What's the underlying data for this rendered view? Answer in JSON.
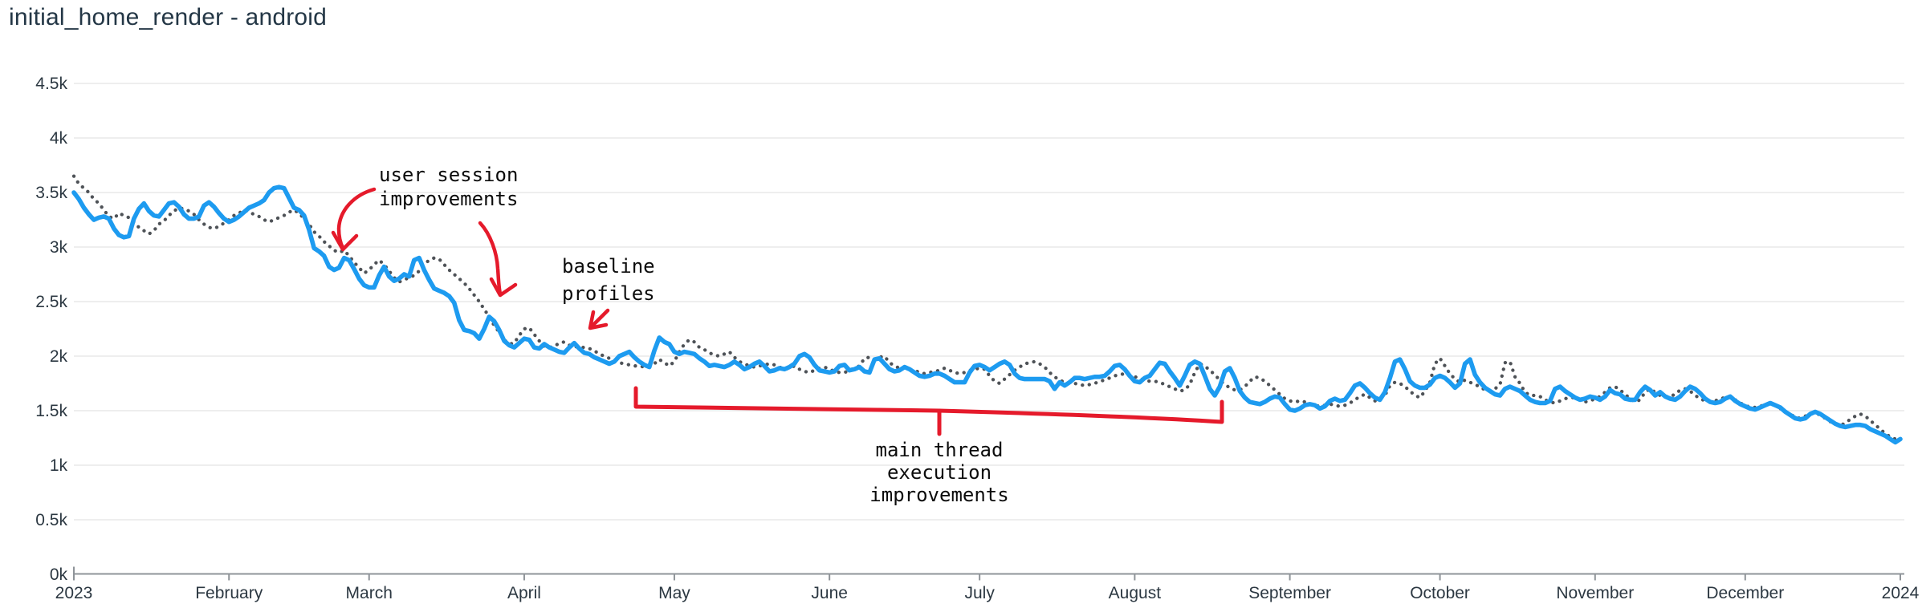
{
  "chart_data": {
    "type": "line",
    "title": "initial_home_render - android",
    "legend": "none",
    "grid": "horizontal-only",
    "x_axis": {
      "start_label": "2023",
      "end_label": "2024",
      "ticks": [
        {
          "label": "2023",
          "day": 0
        },
        {
          "label": "February",
          "day": 31
        },
        {
          "label": "March",
          "day": 59
        },
        {
          "label": "April",
          "day": 90
        },
        {
          "label": "May",
          "day": 120
        },
        {
          "label": "June",
          "day": 151
        },
        {
          "label": "July",
          "day": 181
        },
        {
          "label": "August",
          "day": 212
        },
        {
          "label": "September",
          "day": 243
        },
        {
          "label": "October",
          "day": 273
        },
        {
          "label": "November",
          "day": 304
        },
        {
          "label": "December",
          "day": 334
        },
        {
          "label": "2024",
          "day": 365
        }
      ]
    },
    "y_axis": {
      "unit": "k",
      "range": [
        0,
        4.5
      ],
      "ticks": [
        {
          "label": "0k",
          "value": 0
        },
        {
          "label": "0.5k",
          "value": 0.5
        },
        {
          "label": "1k",
          "value": 1
        },
        {
          "label": "1.5k",
          "value": 1.5
        },
        {
          "label": "2k",
          "value": 2
        },
        {
          "label": "2.5k",
          "value": 2.5
        },
        {
          "label": "3k",
          "value": 3
        },
        {
          "label": "3.5k",
          "value": 3.5
        },
        {
          "label": "4k",
          "value": 4
        },
        {
          "label": "4.5k",
          "value": 4.5
        }
      ]
    },
    "series": [
      {
        "name": "dotted-gray-line",
        "style": "dotted",
        "color": "#4e5257",
        "start_day": 0,
        "step_days": 1,
        "values": [
          3.65,
          3.58,
          3.54,
          3.5,
          3.44,
          3.4,
          3.34,
          3.28,
          3.26,
          3.31,
          3.29,
          3.27,
          3.23,
          3.18,
          3.15,
          3.12,
          3.15,
          3.21,
          3.24,
          3.29,
          3.33,
          3.36,
          3.35,
          3.33,
          3.3,
          3.25,
          3.21,
          3.18,
          3.17,
          3.19,
          3.22,
          3.25,
          3.29,
          3.31,
          3.34,
          3.32,
          3.3,
          3.28,
          3.25,
          3.23,
          3.25,
          3.27,
          3.29,
          3.32,
          3.34,
          3.31,
          3.26,
          3.21,
          3.14,
          3.1,
          3.05,
          3.01,
          2.97,
          2.95,
          2.97,
          2.92,
          2.86,
          2.81,
          2.76,
          2.79,
          2.84,
          2.88,
          2.84,
          2.78,
          2.72,
          2.68,
          2.7,
          2.72,
          2.74,
          2.78,
          2.84,
          2.88,
          2.9,
          2.89,
          2.84,
          2.79,
          2.75,
          2.71,
          2.67,
          2.62,
          2.56,
          2.5,
          2.43,
          2.36,
          2.28,
          2.22,
          2.15,
          2.11,
          2.12,
          2.19,
          2.25,
          2.26,
          2.2,
          2.14,
          2.09,
          2.08,
          2.09,
          2.12,
          2.13,
          2.1,
          2.09,
          2.08,
          2.08,
          2.07,
          2.05,
          2.02,
          2.0,
          1.98,
          1.96,
          1.94,
          1.93,
          1.92,
          1.91,
          1.91,
          1.9,
          1.91,
          1.93,
          1.97,
          1.94,
          1.91,
          1.95,
          2.04,
          2.11,
          2.15,
          2.13,
          2.08,
          2.06,
          2.03,
          2.01,
          2.0,
          2.02,
          2.04,
          1.99,
          1.95,
          1.93,
          1.91,
          1.9,
          1.91,
          1.92,
          1.93,
          1.92,
          1.9,
          1.88,
          1.89,
          1.91,
          1.88,
          1.86,
          1.85,
          1.87,
          1.89,
          1.9,
          1.88,
          1.86,
          1.85,
          1.85,
          1.87,
          1.89,
          1.91,
          1.98,
          1.99,
          1.97,
          1.99,
          2.0,
          1.94,
          1.91,
          1.89,
          1.9,
          1.88,
          1.87,
          1.85,
          1.84,
          1.85,
          1.86,
          1.87,
          1.89,
          1.87,
          1.85,
          1.84,
          1.85,
          1.87,
          1.88,
          1.89,
          1.88,
          1.82,
          1.77,
          1.75,
          1.79,
          1.83,
          1.87,
          1.9,
          1.93,
          1.94,
          1.95,
          1.93,
          1.9,
          1.85,
          1.81,
          1.78,
          1.76,
          1.76,
          1.75,
          1.74,
          1.73,
          1.74,
          1.75,
          1.77,
          1.78,
          1.8,
          1.82,
          1.83,
          1.84,
          1.83,
          1.81,
          1.8,
          1.78,
          1.77,
          1.77,
          1.76,
          1.74,
          1.72,
          1.7,
          1.68,
          1.69,
          1.74,
          1.85,
          1.93,
          1.91,
          1.87,
          1.83,
          1.78,
          1.74,
          1.71,
          1.69,
          1.69,
          1.72,
          1.77,
          1.81,
          1.8,
          1.77,
          1.73,
          1.69,
          1.65,
          1.61,
          1.59,
          1.58,
          1.59,
          1.58,
          1.56,
          1.55,
          1.54,
          1.55,
          1.56,
          1.55,
          1.54,
          1.55,
          1.57,
          1.6,
          1.63,
          1.65,
          1.62,
          1.59,
          1.61,
          1.64,
          1.73,
          1.76,
          1.75,
          1.72,
          1.68,
          1.64,
          1.62,
          1.68,
          1.76,
          1.93,
          1.98,
          1.91,
          1.84,
          1.79,
          1.76,
          1.78,
          1.76,
          1.74,
          1.72,
          1.69,
          1.68,
          1.7,
          1.74,
          1.94,
          1.95,
          1.81,
          1.75,
          1.67,
          1.64,
          1.64,
          1.63,
          1.6,
          1.58,
          1.57,
          1.59,
          1.61,
          1.62,
          1.62,
          1.6,
          1.58,
          1.59,
          1.61,
          1.63,
          1.67,
          1.71,
          1.72,
          1.69,
          1.65,
          1.61,
          1.58,
          1.6,
          1.67,
          1.7,
          1.67,
          1.64,
          1.63,
          1.63,
          1.65,
          1.69,
          1.7,
          1.68,
          1.64,
          1.61,
          1.59,
          1.58,
          1.59,
          1.61,
          1.62,
          1.63,
          1.6,
          1.57,
          1.55,
          1.53,
          1.53,
          1.54,
          1.56,
          1.57,
          1.55,
          1.52,
          1.49,
          1.47,
          1.44,
          1.43,
          1.45,
          1.47,
          1.48,
          1.46,
          1.43,
          1.4,
          1.38,
          1.36,
          1.39,
          1.42,
          1.45,
          1.47,
          1.45,
          1.41,
          1.37,
          1.33,
          1.29,
          1.26,
          1.24,
          1.23
        ]
      },
      {
        "name": "solid-blue-line",
        "style": "solid",
        "color": "#1d9bf0",
        "start_day": 0,
        "step_days": 1,
        "values": [
          3.5,
          3.44,
          3.36,
          3.3,
          3.25,
          3.27,
          3.28,
          3.26,
          3.17,
          3.11,
          3.09,
          3.1,
          3.26,
          3.35,
          3.4,
          3.33,
          3.29,
          3.28,
          3.34,
          3.4,
          3.41,
          3.37,
          3.3,
          3.26,
          3.26,
          3.28,
          3.38,
          3.41,
          3.37,
          3.31,
          3.26,
          3.23,
          3.25,
          3.28,
          3.32,
          3.36,
          3.38,
          3.4,
          3.43,
          3.5,
          3.54,
          3.55,
          3.54,
          3.45,
          3.36,
          3.34,
          3.29,
          3.16,
          2.99,
          2.96,
          2.92,
          2.82,
          2.79,
          2.81,
          2.9,
          2.88,
          2.8,
          2.71,
          2.65,
          2.63,
          2.63,
          2.74,
          2.82,
          2.73,
          2.69,
          2.71,
          2.75,
          2.73,
          2.88,
          2.9,
          2.79,
          2.7,
          2.62,
          2.6,
          2.58,
          2.55,
          2.49,
          2.33,
          2.24,
          2.23,
          2.21,
          2.16,
          2.25,
          2.36,
          2.32,
          2.24,
          2.14,
          2.1,
          2.08,
          2.12,
          2.16,
          2.15,
          2.08,
          2.07,
          2.11,
          2.08,
          2.06,
          2.04,
          2.03,
          2.08,
          2.12,
          2.07,
          2.03,
          2.02,
          1.99,
          1.97,
          1.95,
          1.93,
          1.95,
          2.0,
          2.02,
          2.04,
          1.99,
          1.95,
          1.92,
          1.9,
          2.05,
          2.17,
          2.13,
          2.11,
          2.04,
          2.02,
          2.04,
          2.03,
          2.02,
          1.98,
          1.95,
          1.91,
          1.92,
          1.91,
          1.9,
          1.92,
          1.95,
          1.92,
          1.88,
          1.9,
          1.93,
          1.95,
          1.91,
          1.86,
          1.87,
          1.89,
          1.88,
          1.9,
          1.93,
          2.0,
          2.02,
          1.99,
          1.92,
          1.87,
          1.86,
          1.85,
          1.86,
          1.91,
          1.92,
          1.87,
          1.88,
          1.9,
          1.86,
          1.85,
          1.97,
          1.98,
          1.93,
          1.88,
          1.86,
          1.87,
          1.9,
          1.88,
          1.85,
          1.82,
          1.81,
          1.82,
          1.84,
          1.84,
          1.82,
          1.79,
          1.76,
          1.76,
          1.76,
          1.85,
          1.91,
          1.92,
          1.9,
          1.87,
          1.9,
          1.93,
          1.95,
          1.92,
          1.84,
          1.8,
          1.79,
          1.79,
          1.79,
          1.79,
          1.79,
          1.77,
          1.7,
          1.76,
          1.73,
          1.76,
          1.8,
          1.8,
          1.79,
          1.8,
          1.81,
          1.81,
          1.82,
          1.86,
          1.91,
          1.92,
          1.88,
          1.82,
          1.77,
          1.76,
          1.8,
          1.82,
          1.88,
          1.94,
          1.93,
          1.86,
          1.8,
          1.73,
          1.82,
          1.92,
          1.95,
          1.93,
          1.82,
          1.7,
          1.64,
          1.72,
          1.86,
          1.89,
          1.8,
          1.68,
          1.62,
          1.58,
          1.57,
          1.56,
          1.58,
          1.61,
          1.63,
          1.62,
          1.56,
          1.51,
          1.5,
          1.52,
          1.55,
          1.56,
          1.55,
          1.52,
          1.54,
          1.59,
          1.61,
          1.59,
          1.6,
          1.66,
          1.73,
          1.75,
          1.71,
          1.66,
          1.62,
          1.6,
          1.67,
          1.8,
          1.95,
          1.97,
          1.88,
          1.77,
          1.73,
          1.71,
          1.71,
          1.74,
          1.8,
          1.82,
          1.8,
          1.76,
          1.71,
          1.75,
          1.93,
          1.97,
          1.83,
          1.76,
          1.71,
          1.68,
          1.65,
          1.64,
          1.7,
          1.72,
          1.7,
          1.68,
          1.64,
          1.6,
          1.58,
          1.57,
          1.57,
          1.59,
          1.7,
          1.72,
          1.68,
          1.65,
          1.62,
          1.6,
          1.61,
          1.63,
          1.62,
          1.6,
          1.63,
          1.69,
          1.66,
          1.65,
          1.61,
          1.6,
          1.6,
          1.67,
          1.72,
          1.69,
          1.64,
          1.67,
          1.63,
          1.61,
          1.6,
          1.63,
          1.68,
          1.72,
          1.7,
          1.66,
          1.61,
          1.58,
          1.57,
          1.58,
          1.61,
          1.63,
          1.59,
          1.56,
          1.54,
          1.52,
          1.51,
          1.53,
          1.55,
          1.57,
          1.55,
          1.53,
          1.49,
          1.46,
          1.43,
          1.42,
          1.43,
          1.47,
          1.49,
          1.47,
          1.44,
          1.41,
          1.38,
          1.36,
          1.35,
          1.36,
          1.37,
          1.37,
          1.36,
          1.33,
          1.31,
          1.29,
          1.27,
          1.24,
          1.21,
          1.24
        ]
      }
    ],
    "annotations": {
      "user_session": {
        "line1": "user session",
        "line2": "improvements"
      },
      "baseline_profiles": {
        "line1": "baseline",
        "line2": "profiles"
      },
      "main_thread": {
        "line1": "main thread",
        "line2": "execution",
        "line3": "improvements"
      }
    }
  },
  "colors": {
    "background": "#ffffff",
    "solid_line": "#1d9bf0",
    "dotted_line": "#4e5257",
    "annotation_red": "#e51a2b",
    "gridline": "#e8e8e8",
    "axis_line": "#8f9499",
    "title_text": "#243746",
    "axis_text": "#2c3842",
    "annotation_text": "#0b0b0b"
  }
}
